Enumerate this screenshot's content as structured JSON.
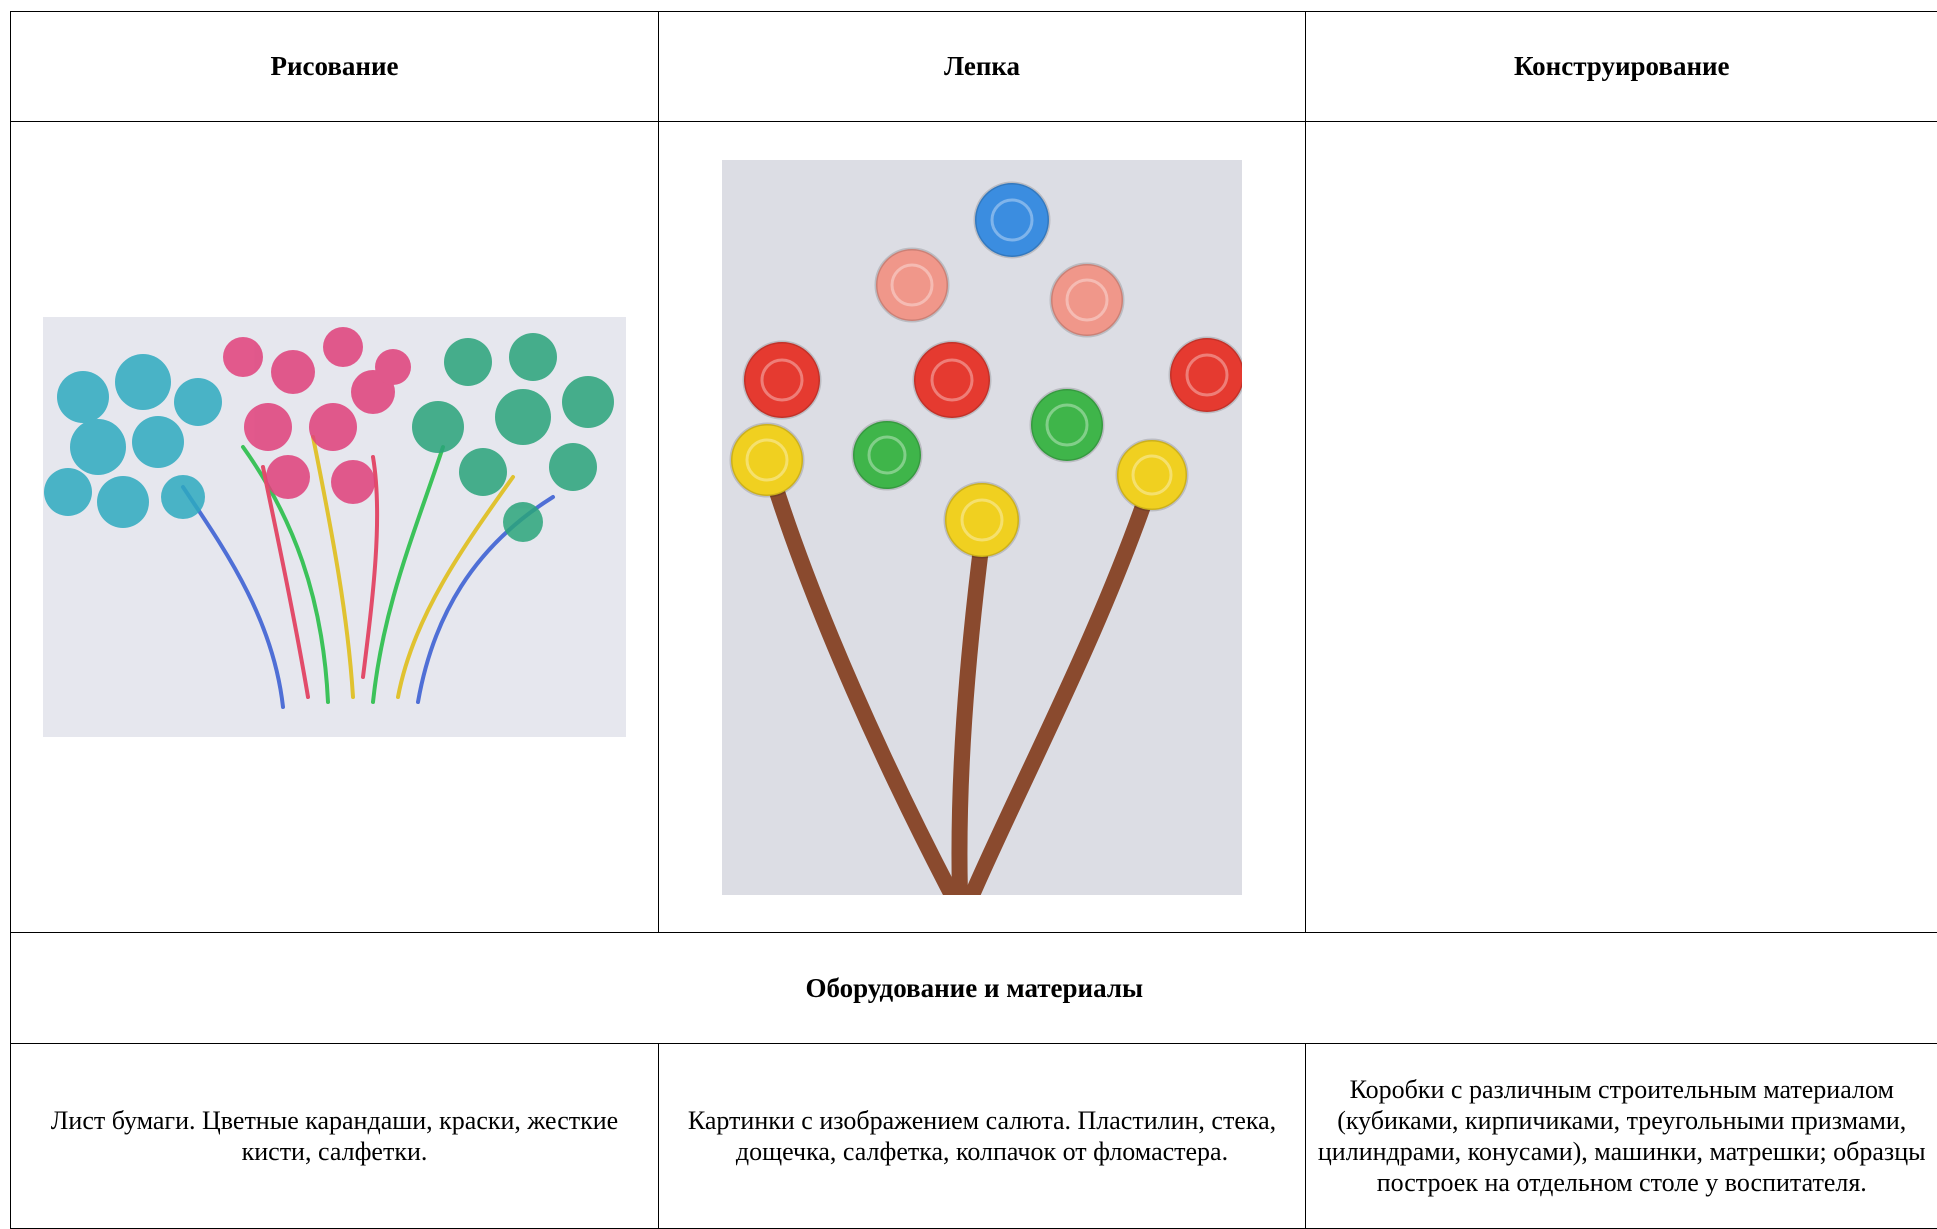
{
  "table": {
    "header": [
      "Рисование",
      "Лепка",
      "Конструирование"
    ],
    "section_title": "Оборудование и материалы",
    "materials": [
      "Лист бумаги. Цветные карандаши, краски, жесткие кисти, салфетки.",
      "Картинки с изображением салюта. Пластилин, стека, дощечка, салфетка, колпачок от фломастера.",
      "Коробки с различным строительным материалом (кубиками, кирпичиками, треугольными призмами, цилиндрами, конусами), машинки, матрешки; образцы построек на отдельном столе у воспитателя."
    ]
  }
}
